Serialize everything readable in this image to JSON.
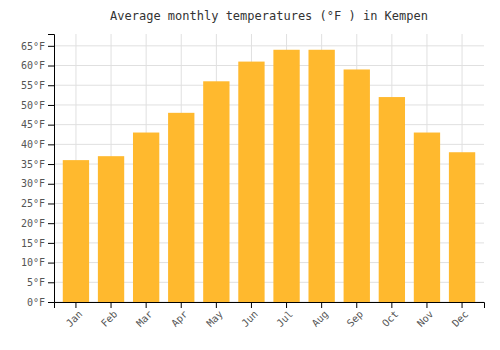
{
  "chart_data": {
    "type": "bar",
    "title": "Average monthly temperatures (°F ) in Kempen",
    "categories": [
      "Jan",
      "Feb",
      "Mar",
      "Apr",
      "May",
      "Jun",
      "Jul",
      "Aug",
      "Sep",
      "Oct",
      "Nov",
      "Dec"
    ],
    "values": [
      36,
      37,
      43,
      48,
      56,
      61,
      64,
      64,
      59,
      52,
      43,
      38
    ],
    "color": "#FFB92E",
    "ylim": [
      0,
      68
    ],
    "yticks": [
      {
        "value": 0,
        "label": "0°F"
      },
      {
        "value": 5,
        "label": "5°F"
      },
      {
        "value": 10,
        "label": "10°F"
      },
      {
        "value": 15,
        "label": "15°F"
      },
      {
        "value": 20,
        "label": "20°F"
      },
      {
        "value": 25,
        "label": "25°F"
      },
      {
        "value": 30,
        "label": "30°F"
      },
      {
        "value": 35,
        "label": "35°F"
      },
      {
        "value": 40,
        "label": "40°F"
      },
      {
        "value": 45,
        "label": "45°F"
      },
      {
        "value": 50,
        "label": "50°F"
      },
      {
        "value": 55,
        "label": "55°F"
      },
      {
        "value": 60,
        "label": "60°F"
      },
      {
        "value": 65,
        "label": "65°F"
      }
    ],
    "grid": true
  }
}
